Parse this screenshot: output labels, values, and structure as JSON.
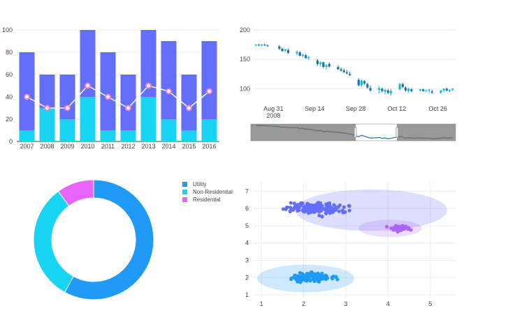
{
  "chart_data": [
    {
      "type": "bar",
      "stacked": true,
      "categories": [
        "2007",
        "2008",
        "2009",
        "2010",
        "2011",
        "2012",
        "2013",
        "2014",
        "2015",
        "2016"
      ],
      "series": [
        {
          "values": [
            10,
            30,
            20,
            40,
            10,
            10,
            40,
            20,
            10,
            20
          ],
          "color": "#19d3f3"
        },
        {
          "values": [
            70,
            30,
            40,
            60,
            70,
            50,
            60,
            70,
            50,
            70
          ],
          "color": "#636efa"
        }
      ],
      "line": {
        "values": [
          40,
          30,
          30,
          50,
          40,
          30,
          50,
          45,
          30,
          45
        ],
        "color": "#ffffff",
        "marker_color": "#ef7fc7"
      },
      "ylim": [
        0,
        100
      ],
      "yticks": [
        0,
        20,
        40,
        60,
        80,
        100
      ],
      "grid": true
    },
    {
      "type": "candlestick",
      "dates": [
        "2008-08-25",
        "2008-08-26",
        "2008-08-27",
        "2008-08-28",
        "2008-08-29",
        "2008-09-02",
        "2008-09-03",
        "2008-09-04",
        "2008-09-05",
        "2008-09-08",
        "2008-09-09",
        "2008-09-10",
        "2008-09-11",
        "2008-09-12",
        "2008-09-15",
        "2008-09-16",
        "2008-09-17",
        "2008-09-18",
        "2008-09-19",
        "2008-09-22",
        "2008-09-23",
        "2008-09-24",
        "2008-09-25",
        "2008-09-26",
        "2008-09-29",
        "2008-09-30",
        "2008-10-01",
        "2008-10-02",
        "2008-10-03",
        "2008-10-06",
        "2008-10-07",
        "2008-10-08",
        "2008-10-09",
        "2008-10-10",
        "2008-10-13",
        "2008-10-14",
        "2008-10-15",
        "2008-10-16",
        "2008-10-17",
        "2008-10-20",
        "2008-10-21",
        "2008-10-22",
        "2008-10-23",
        "2008-10-24",
        "2008-10-27",
        "2008-10-28",
        "2008-10-29",
        "2008-10-30",
        "2008-10-31"
      ],
      "ohlc": [
        [
          174,
          176,
          172,
          175
        ],
        [
          175,
          176,
          173,
          174
        ],
        [
          174,
          176,
          172,
          175
        ],
        [
          175,
          177,
          173,
          174
        ],
        [
          174,
          175,
          171,
          173
        ],
        [
          172,
          174,
          166,
          168
        ],
        [
          168,
          170,
          163,
          164
        ],
        [
          165,
          168,
          162,
          167
        ],
        [
          166,
          168,
          160,
          161
        ],
        [
          160,
          165,
          157,
          163
        ],
        [
          162,
          164,
          155,
          156
        ],
        [
          156,
          159,
          153,
          158
        ],
        [
          157,
          159,
          151,
          152
        ],
        [
          152,
          156,
          149,
          154
        ],
        [
          148,
          150,
          140,
          142
        ],
        [
          142,
          147,
          138,
          145
        ],
        [
          145,
          146,
          135,
          137
        ],
        [
          137,
          142,
          132,
          140
        ],
        [
          142,
          145,
          136,
          138
        ],
        [
          137,
          140,
          132,
          133
        ],
        [
          133,
          136,
          129,
          131
        ],
        [
          131,
          134,
          127,
          128
        ],
        [
          128,
          132,
          125,
          126
        ],
        [
          125,
          129,
          122,
          123
        ],
        [
          115,
          118,
          104,
          106
        ],
        [
          106,
          116,
          103,
          114
        ],
        [
          113,
          115,
          107,
          109
        ],
        [
          108,
          110,
          100,
          102
        ],
        [
          101,
          105,
          95,
          97
        ],
        [
          98,
          104,
          92,
          101
        ],
        [
          100,
          102,
          94,
          96
        ],
        [
          95,
          100,
          90,
          98
        ],
        [
          97,
          100,
          91,
          93
        ],
        [
          92,
          100,
          88,
          96
        ],
        [
          99,
          110,
          97,
          108
        ],
        [
          108,
          110,
          101,
          103
        ],
        [
          102,
          104,
          95,
          97
        ],
        [
          96,
          102,
          93,
          100
        ],
        [
          99,
          101,
          94,
          96
        ],
        [
          97,
          100,
          95,
          99
        ],
        [
          99,
          100,
          95,
          96
        ],
        [
          96,
          99,
          94,
          97
        ],
        [
          97,
          100,
          93,
          98
        ],
        [
          95,
          98,
          92,
          93
        ],
        [
          93,
          98,
          91,
          97
        ],
        [
          97,
          101,
          94,
          100
        ],
        [
          100,
          102,
          96,
          97
        ],
        [
          96,
          99,
          94,
          98
        ],
        [
          98,
          101,
          96,
          100
        ]
      ],
      "increasing_color": "#17becf",
      "decreasing_color": "#1f6fa8",
      "ylim": [
        85,
        200
      ],
      "yticks": [
        100,
        150,
        200
      ],
      "xticks": [
        {
          "date": "2008-08-31",
          "label": "Aug 31",
          "sublabel": "2008"
        },
        {
          "date": "2008-09-14",
          "label": "Sep 14"
        },
        {
          "date": "2008-09-28",
          "label": "Sep 28"
        },
        {
          "date": "2008-10-12",
          "label": "Oct 12"
        },
        {
          "date": "2008-10-26",
          "label": "Oct 26"
        }
      ],
      "rangeslider": {
        "selected_start": "2008-09-28",
        "selected_end": "2008-10-12"
      }
    },
    {
      "type": "pie",
      "hole": true,
      "legend_position": "top-right",
      "labels": [
        "Utility",
        "Non-Residential",
        "Residential"
      ],
      "values": [
        58,
        32,
        10
      ],
      "colors": [
        "#1f9bf5",
        "#19d3f3",
        "#e763fa"
      ]
    },
    {
      "type": "scatter",
      "xlim": [
        0.8,
        5.6
      ],
      "ylim": [
        0.8,
        7.5
      ],
      "xticks": [
        1,
        2,
        3,
        4,
        5
      ],
      "yticks": [
        1,
        2,
        3,
        4,
        5,
        6,
        7
      ],
      "grid": true,
      "clusters": [
        {
          "cx": 2.3,
          "cy": 6.0,
          "rx": 1.0,
          "ry": 0.45,
          "n": 200,
          "color": "#636efa",
          "ellipse": {
            "cx": 3.6,
            "cy": 5.9,
            "rx": 1.8,
            "ry": 1.2
          }
        },
        {
          "cx": 4.25,
          "cy": 4.85,
          "rx": 0.32,
          "ry": 0.22,
          "n": 60,
          "color": "#ab63fa",
          "ellipse": {
            "cx": 4.05,
            "cy": 4.85,
            "rx": 0.75,
            "ry": 0.5
          }
        },
        {
          "cx": 2.2,
          "cy": 2.0,
          "rx": 0.7,
          "ry": 0.35,
          "n": 150,
          "color": "#1f9bf5",
          "ellipse": {
            "cx": 2.05,
            "cy": 1.95,
            "rx": 1.15,
            "ry": 0.8
          }
        }
      ]
    }
  ]
}
